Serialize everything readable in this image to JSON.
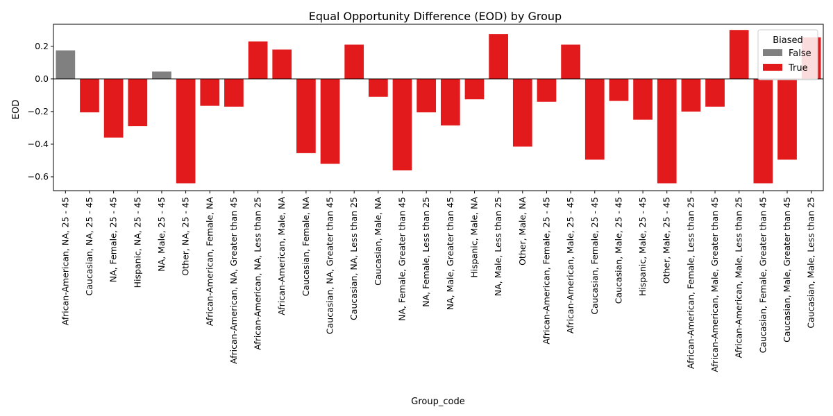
{
  "chart_data": {
    "type": "bar",
    "title": "Equal Opportunity Difference (EOD) by Group",
    "xlabel": "Group_code",
    "ylabel": "EOD",
    "ylim": [
      -0.685,
      0.335
    ],
    "yticks": [
      0.2,
      0.0,
      -0.2,
      -0.4,
      -0.6
    ],
    "ytick_labels": [
      "0.2",
      "0.0",
      "−0.2",
      "−0.4",
      "−0.6"
    ],
    "grid": false,
    "legend": {
      "title": "Biased",
      "placement": "top-right",
      "entries": [
        {
          "label": "False",
          "color": "#808080"
        },
        {
          "label": "True",
          "color": "#e31a1c"
        }
      ]
    },
    "colors": {
      "False": "#808080",
      "True": "#e31a1c"
    },
    "categories": [
      "African-American, NA, 25 - 45",
      "Caucasian, NA, 25 - 45",
      "NA, Female, 25 - 45",
      "Hispanic, NA, 25 - 45",
      "NA, Male, 25 - 45",
      "Other, NA, 25 - 45",
      "African-American, Female, NA",
      "African-American, NA, Greater than 45",
      "African-American, NA, Less than 25",
      "African-American, Male, NA",
      "Caucasian, Female, NA",
      "Caucasian, NA, Greater than 45",
      "Caucasian, NA, Less than 25",
      "Caucasian, Male, NA",
      "NA, Female, Greater than 45",
      "NA, Female, Less than 25",
      "NA, Male, Greater than 45",
      "Hispanic, Male, NA",
      "NA, Male, Less than 25",
      "Other, Male, NA",
      "African-American, Female, 25 - 45",
      "African-American, Male, 25 - 45",
      "Caucasian, Female, 25 - 45",
      "Caucasian, Male, 25 - 45",
      "Hispanic, Male, 25 - 45",
      "Other, Male, 25 - 45",
      "African-American, Female, Less than 25",
      "African-American, Male, Greater than 45",
      "African-American, Male, Less than 25",
      "Caucasian, Female, Greater than 45",
      "Caucasian, Male, Greater than 45",
      "Caucasian, Male, Less than 25"
    ],
    "values": [
      0.175,
      -0.205,
      -0.36,
      -0.29,
      0.045,
      -0.64,
      -0.165,
      -0.17,
      0.23,
      0.18,
      -0.455,
      -0.52,
      0.21,
      -0.11,
      -0.56,
      -0.205,
      -0.285,
      -0.125,
      0.275,
      -0.415,
      -0.14,
      0.21,
      -0.495,
      -0.135,
      -0.25,
      -0.64,
      -0.2,
      -0.17,
      0.3,
      -0.64,
      -0.495,
      0.255
    ],
    "biased": [
      false,
      true,
      true,
      true,
      false,
      true,
      true,
      true,
      true,
      true,
      true,
      true,
      true,
      true,
      true,
      true,
      true,
      true,
      true,
      true,
      true,
      true,
      true,
      true,
      true,
      true,
      true,
      true,
      true,
      true,
      true,
      true
    ]
  }
}
